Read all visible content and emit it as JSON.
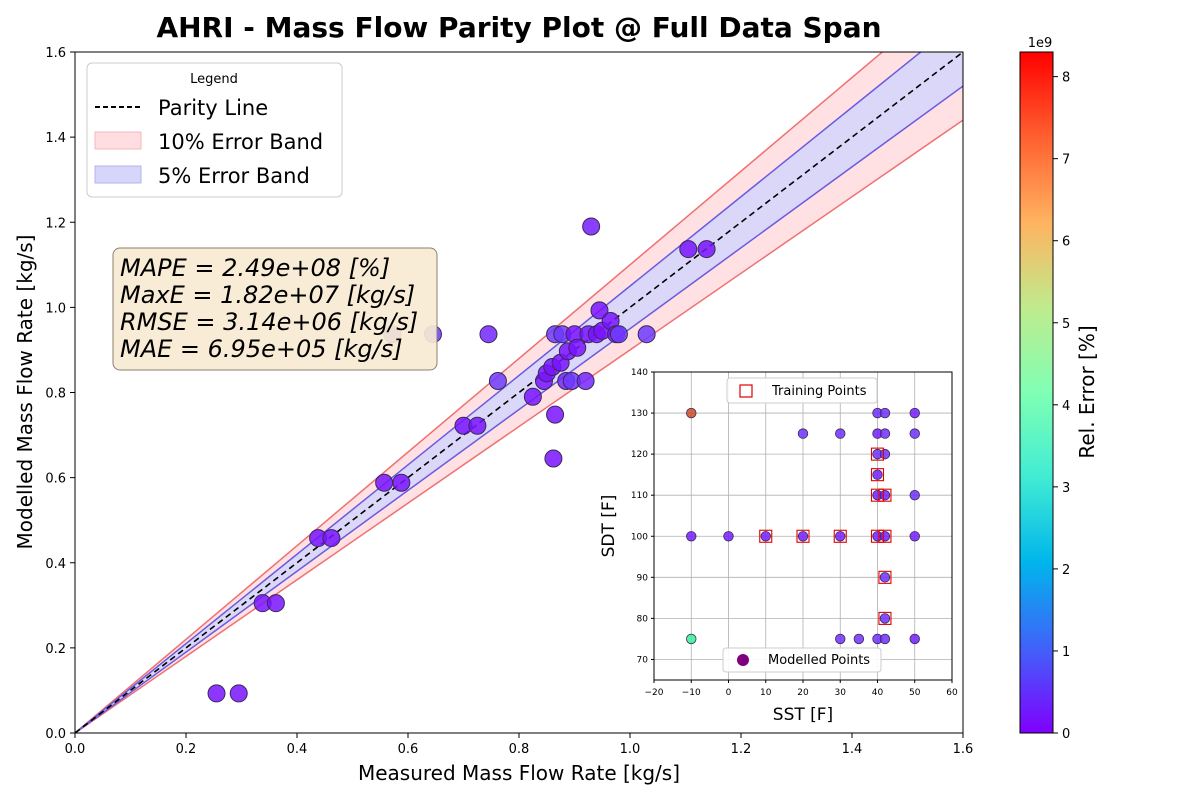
{
  "chart_data": [
    {
      "type": "scatter",
      "title": "AHRI - Mass Flow Parity Plot @ Full Data Span",
      "xlabel": "Measured Mass Flow Rate [kg/s]",
      "ylabel": "Modelled Mass Flow Rate [kg/s]",
      "xlim": [
        0,
        1.6
      ],
      "ylim": [
        0,
        1.6
      ],
      "xticks": [
        "0.0",
        "0.2",
        "0.4",
        "0.6",
        "0.8",
        "1.0",
        "1.2",
        "1.4",
        "1.6"
      ],
      "yticks": [
        "0.0",
        "0.2",
        "0.4",
        "0.6",
        "0.8",
        "1.0",
        "1.2",
        "1.4",
        "1.6"
      ],
      "grid": false,
      "legend": {
        "title": "Legend",
        "placement": "top-left",
        "entries": [
          "Parity Line",
          "10% Error Band",
          "5% Error Band"
        ]
      },
      "bands": [
        {
          "name": "10% Error Band",
          "pct": 10,
          "fill": "#ffdde0",
          "edge": "#f07070"
        },
        {
          "name": "5% Error Band",
          "pct": 5,
          "fill": "#d6d6fa",
          "edge": "#6a5ae0"
        }
      ],
      "stats": [
        "MAPE = 2.49e+08 [%]",
        "MaxE = 1.82e+07 [kg/s]",
        "RMSE = 3.14e+06 [kg/s]",
        "MAE = 6.95e+05 [kg/s]"
      ],
      "points": [
        {
          "x": 0.255,
          "y": 0.093,
          "err": 0.2
        },
        {
          "x": 0.295,
          "y": 0.093,
          "err": 0.2
        },
        {
          "x": 0.338,
          "y": 0.305,
          "err": 0.2
        },
        {
          "x": 0.362,
          "y": 0.305,
          "err": 0.2
        },
        {
          "x": 0.438,
          "y": 0.458,
          "err": 0.2
        },
        {
          "x": 0.462,
          "y": 0.458,
          "err": 0.2
        },
        {
          "x": 0.557,
          "y": 0.588,
          "err": 0.2
        },
        {
          "x": 0.588,
          "y": 0.588,
          "err": 0.2
        },
        {
          "x": 0.572,
          "y": 0.937,
          "err": 0.6
        },
        {
          "x": 0.645,
          "y": 0.937,
          "err": 0.6
        },
        {
          "x": 0.7,
          "y": 0.722,
          "err": 0.2
        },
        {
          "x": 0.725,
          "y": 0.722,
          "err": 0.2
        },
        {
          "x": 0.745,
          "y": 0.937,
          "err": 0.4
        },
        {
          "x": 0.762,
          "y": 0.827,
          "err": 0.6
        },
        {
          "x": 0.825,
          "y": 0.79,
          "err": 0.2
        },
        {
          "x": 0.845,
          "y": 0.827,
          "err": 0.2
        },
        {
          "x": 0.85,
          "y": 0.845,
          "err": 0.2
        },
        {
          "x": 0.86,
          "y": 0.86,
          "err": 0.2
        },
        {
          "x": 0.862,
          "y": 0.645,
          "err": 0.2
        },
        {
          "x": 0.865,
          "y": 0.748,
          "err": 0.2
        },
        {
          "x": 0.865,
          "y": 0.937,
          "err": 0.6
        },
        {
          "x": 0.875,
          "y": 0.87,
          "err": 0.2
        },
        {
          "x": 0.878,
          "y": 0.937,
          "err": 0.6
        },
        {
          "x": 0.885,
          "y": 0.827,
          "err": 0.4
        },
        {
          "x": 0.888,
          "y": 0.897,
          "err": 0.2
        },
        {
          "x": 0.895,
          "y": 0.827,
          "err": 0.6
        },
        {
          "x": 0.9,
          "y": 0.937,
          "err": 0.2
        },
        {
          "x": 0.905,
          "y": 0.905,
          "err": 0.2
        },
        {
          "x": 0.92,
          "y": 0.827,
          "err": 0.4
        },
        {
          "x": 0.925,
          "y": 0.937,
          "err": 0.2
        },
        {
          "x": 0.93,
          "y": 1.19,
          "err": 0.3
        },
        {
          "x": 0.94,
          "y": 0.937,
          "err": 0.2
        },
        {
          "x": 0.945,
          "y": 0.993,
          "err": 0.2
        },
        {
          "x": 0.95,
          "y": 0.945,
          "err": 0.2
        },
        {
          "x": 0.965,
          "y": 0.968,
          "err": 0.2
        },
        {
          "x": 0.975,
          "y": 0.937,
          "err": 0.2
        },
        {
          "x": 0.98,
          "y": 0.937,
          "err": 0.6
        },
        {
          "x": 1.03,
          "y": 0.937,
          "err": 0.6
        },
        {
          "x": 1.105,
          "y": 1.137,
          "err": 0.2
        },
        {
          "x": 1.138,
          "y": 1.137,
          "err": 0.2
        }
      ]
    },
    {
      "type": "scatter",
      "title": "",
      "xlabel": "SST [F]",
      "ylabel": "SDT [F]",
      "xlim": [
        -20,
        60
      ],
      "ylim": [
        65,
        140
      ],
      "xticks": [
        "−20",
        "−10",
        "0",
        "10",
        "20",
        "30",
        "40",
        "50",
        "60"
      ],
      "yticks": [
        "70",
        "80",
        "90",
        "100",
        "110",
        "120",
        "130",
        "140"
      ],
      "grid": true,
      "legend": {
        "entries": [
          "Training Points",
          "Modelled Points"
        ],
        "placement": "top-center / bottom-center"
      },
      "modelled_points": [
        {
          "x": -10,
          "y": 130,
          "err": 7.5
        },
        {
          "x": -10,
          "y": 100,
          "err": 0.3
        },
        {
          "x": -10,
          "y": 75,
          "err": 5.0
        },
        {
          "x": 0,
          "y": 100,
          "err": 0.3
        },
        {
          "x": 10,
          "y": 100,
          "err": 0.3
        },
        {
          "x": 20,
          "y": 125,
          "err": 0.5
        },
        {
          "x": 20,
          "y": 100,
          "err": 0.3
        },
        {
          "x": 30,
          "y": 125,
          "err": 0.5
        },
        {
          "x": 30,
          "y": 100,
          "err": 0.3
        },
        {
          "x": 30,
          "y": 75,
          "err": 0.5
        },
        {
          "x": 35,
          "y": 75,
          "err": 0.5
        },
        {
          "x": 40,
          "y": 130,
          "err": 0.5
        },
        {
          "x": 40,
          "y": 125,
          "err": 0.3
        },
        {
          "x": 40,
          "y": 120,
          "err": 0.5
        },
        {
          "x": 40,
          "y": 115,
          "err": 0.3
        },
        {
          "x": 40,
          "y": 110,
          "err": 0.3
        },
        {
          "x": 40,
          "y": 100,
          "err": 0.3
        },
        {
          "x": 40,
          "y": 75,
          "err": 0.5
        },
        {
          "x": 42,
          "y": 130,
          "err": 0.5
        },
        {
          "x": 42,
          "y": 125,
          "err": 0.5
        },
        {
          "x": 42,
          "y": 120,
          "err": 0.5
        },
        {
          "x": 42,
          "y": 110,
          "err": 0.3
        },
        {
          "x": 42,
          "y": 100,
          "err": 0.3
        },
        {
          "x": 42,
          "y": 90,
          "err": 0.5
        },
        {
          "x": 42,
          "y": 80,
          "err": 0.5
        },
        {
          "x": 42,
          "y": 75,
          "err": 0.5
        },
        {
          "x": 50,
          "y": 130,
          "err": 0.3
        },
        {
          "x": 50,
          "y": 125,
          "err": 0.5
        },
        {
          "x": 50,
          "y": 110,
          "err": 0.5
        },
        {
          "x": 50,
          "y": 100,
          "err": 0.3
        },
        {
          "x": 50,
          "y": 75,
          "err": 0.3
        }
      ],
      "training_points": [
        {
          "x": 10,
          "y": 100
        },
        {
          "x": 20,
          "y": 100
        },
        {
          "x": 30,
          "y": 100
        },
        {
          "x": 40,
          "y": 100
        },
        {
          "x": 42,
          "y": 100
        },
        {
          "x": 40,
          "y": 110
        },
        {
          "x": 42,
          "y": 110
        },
        {
          "x": 40,
          "y": 115
        },
        {
          "x": 40,
          "y": 120
        },
        {
          "x": 42,
          "y": 90
        },
        {
          "x": 42,
          "y": 80
        }
      ]
    }
  ],
  "colorbar": {
    "label": "Rel. Error [%]",
    "multiplier": "1e9",
    "min": 0,
    "max": 8.3,
    "ticks": [
      "0",
      "1",
      "2",
      "3",
      "4",
      "5",
      "6",
      "7",
      "8"
    ],
    "colormap": "rainbow"
  }
}
